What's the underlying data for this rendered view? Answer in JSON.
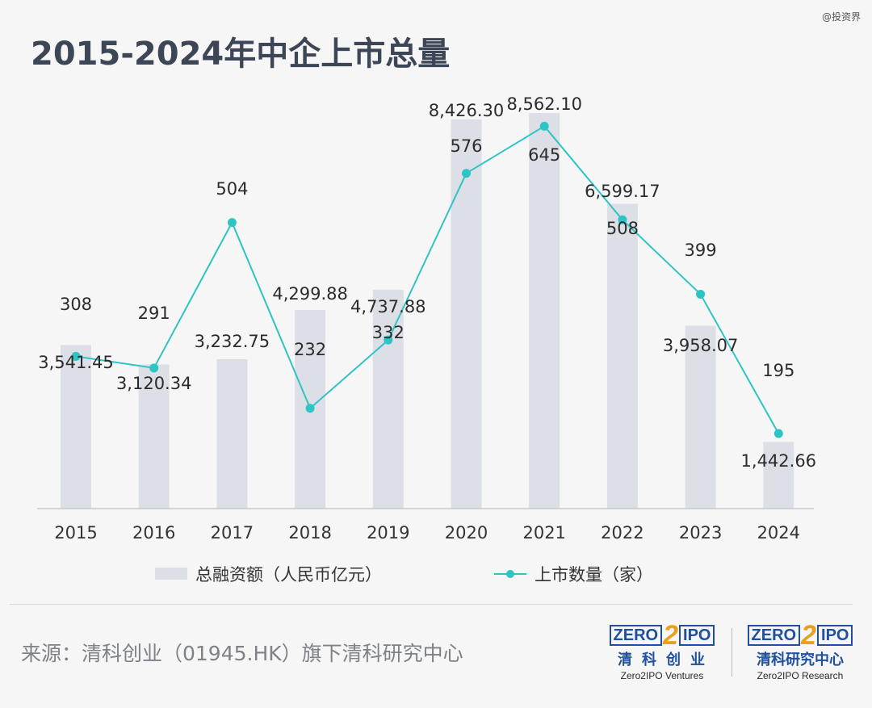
{
  "watermark": "@投资界",
  "chart_data": {
    "type": "bar+line",
    "title": "2015-2024年中企上市总量",
    "categories": [
      "2015",
      "2016",
      "2017",
      "2018",
      "2019",
      "2020",
      "2021",
      "2022",
      "2023",
      "2024"
    ],
    "series": [
      {
        "name": "总融资额（人民币亿元）",
        "type": "bar",
        "color": "#dcdfe5",
        "values": [
          3541.45,
          3120.34,
          3232.75,
          4299.88,
          4737.88,
          8426.3,
          8562.1,
          6599.17,
          3958.07,
          1442.66
        ],
        "labels": [
          "3,541.45",
          "3,120.34",
          "3,232.75",
          "4,299.88",
          "4,737.88",
          "8,426.30",
          "8,562.10",
          "6,599.17",
          "3,958.07",
          "1,442.66"
        ]
      },
      {
        "name": "上市数量（家）",
        "type": "line",
        "color": "#2ec4c6",
        "values": [
          308,
          291,
          504,
          232,
          332,
          576,
          645,
          508,
          399,
          195
        ],
        "labels": [
          "308",
          "291",
          "504",
          "232",
          "332",
          "576",
          "645",
          "508",
          "399",
          "195"
        ]
      }
    ],
    "legend": "bottom-center"
  },
  "footer": {
    "source": "来源：清科创业（01945.HK）旗下清科研究中心"
  },
  "logos": [
    {
      "zero": "ZERO",
      "two": "2",
      "ipo": "IPO",
      "cn": "清科创业",
      "en": "Zero2IPO Ventures"
    },
    {
      "zero": "ZERO",
      "two": "2",
      "ipo": "IPO",
      "cn": "清科研究中心",
      "en": "Zero2IPO Research"
    }
  ]
}
